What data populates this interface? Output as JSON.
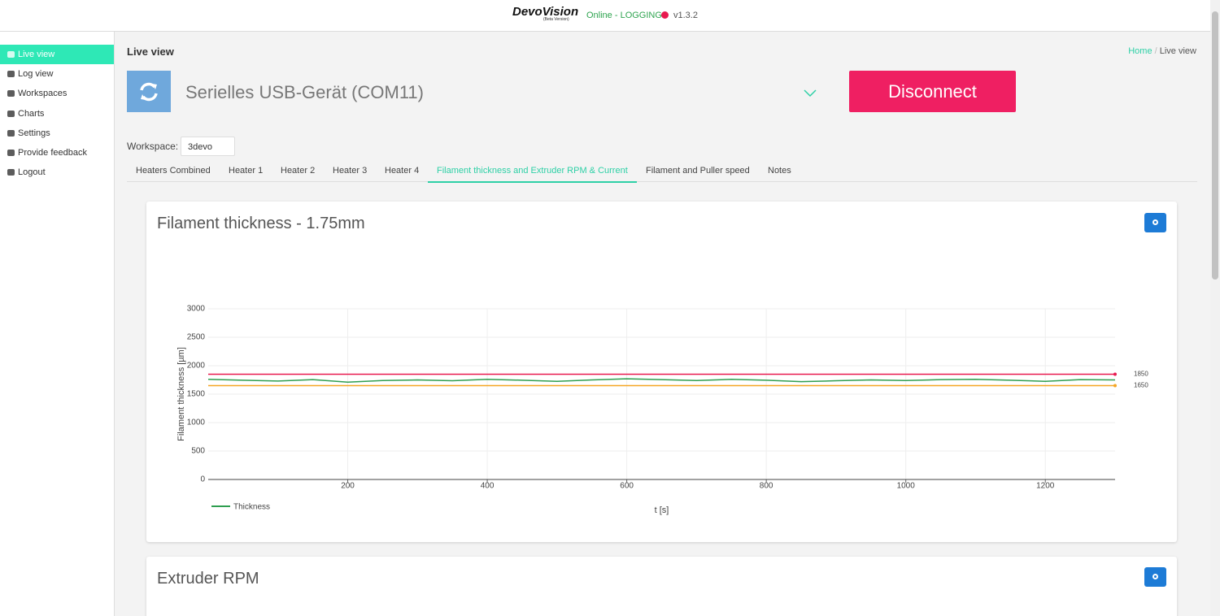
{
  "header": {
    "brand": "DevoVision",
    "brand_note": "(Beta Version)",
    "status": "Online - LOGGING",
    "version": "v1.3.2"
  },
  "sidebar": {
    "items": [
      "Live view",
      "Log view",
      "Workspaces",
      "Charts",
      "Settings",
      "Provide feedback",
      "Logout"
    ],
    "active": 0
  },
  "page": {
    "title": "Live view",
    "breadcrumb": [
      "Home",
      "Live view"
    ],
    "breadcrumb_separator": "/"
  },
  "device": {
    "name": "Serielles USB-Gerät (COM11)",
    "button": "Disconnect"
  },
  "workspace": {
    "label": "Workspace:",
    "value": "3devo"
  },
  "tabs": {
    "items": [
      "Heaters Combined",
      "Heater 1",
      "Heater 2",
      "Heater 3",
      "Heater 4",
      "Filament thickness and Extruder RPM & Current",
      "Filament and Puller speed",
      "Notes"
    ],
    "active": 5
  },
  "cards": [
    "Extruder RPM"
  ],
  "chart_data": {
    "type": "line",
    "title": "Filament thickness - 1.75mm",
    "x_label": "t [s]",
    "y_label": "Filament thickness [µm]",
    "x": [
      0,
      50,
      100,
      150,
      200,
      250,
      300,
      350,
      400,
      450,
      500,
      550,
      600,
      650,
      700,
      750,
      800,
      850,
      900,
      950,
      1000,
      1050,
      1100,
      1150,
      1200,
      1250,
      1300
    ],
    "series": [
      {
        "name": "Thickness",
        "color": "#2e9e4f",
        "values": [
          1760,
          1745,
          1730,
          1755,
          1710,
          1740,
          1750,
          1735,
          1760,
          1745,
          1725,
          1750,
          1770,
          1755,
          1740,
          1760,
          1745,
          1720,
          1735,
          1750,
          1740,
          1755,
          1760,
          1745,
          1725,
          1755,
          1750
        ]
      }
    ],
    "limits": [
      {
        "value": 1850,
        "color": "#e8194f"
      },
      {
        "value": 1650,
        "color": "#f5a623"
      }
    ],
    "xlim": [
      0,
      1300
    ],
    "xticks": [
      200,
      400,
      600,
      800,
      1000,
      1200
    ],
    "ylim": [
      0,
      3000
    ],
    "yticks": [
      0,
      500,
      1000,
      1500,
      2000,
      2500,
      3000
    ],
    "grid": true
  }
}
